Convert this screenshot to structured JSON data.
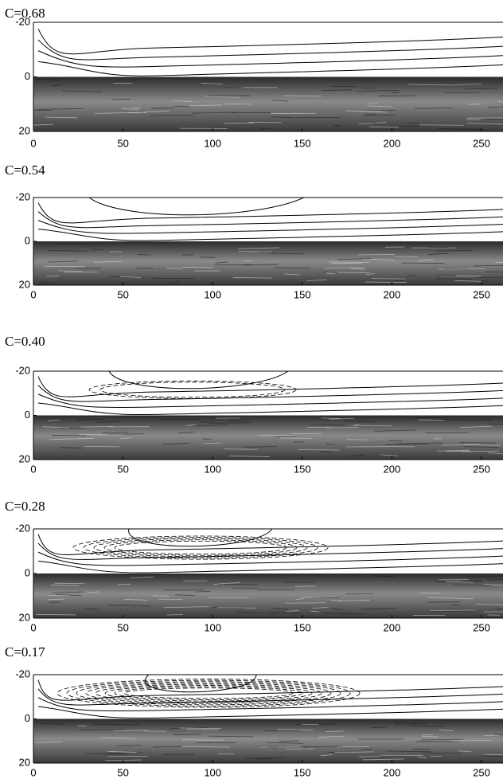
{
  "chart_data": [
    {
      "type": "flow",
      "title": "C=0.68",
      "xlim": [
        0,
        262
      ],
      "xticks": [
        0,
        50,
        100,
        150,
        200,
        250
      ],
      "ylim": [
        -20,
        20
      ],
      "yticks": [
        -20,
        0,
        20
      ]
    },
    {
      "type": "flow",
      "title": "C=0.54",
      "xlim": [
        0,
        262
      ],
      "xticks": [
        0,
        50,
        100,
        150,
        200,
        250
      ],
      "ylim": [
        -20,
        20
      ],
      "yticks": [
        -20,
        0,
        20
      ]
    },
    {
      "type": "flow",
      "title": "C=0.40",
      "xlim": [
        0,
        262
      ],
      "xticks": [
        0,
        50,
        100,
        150,
        200,
        250
      ],
      "ylim": [
        -20,
        20
      ],
      "yticks": [
        -20,
        0,
        20
      ]
    },
    {
      "type": "flow",
      "title": "C=0.28",
      "xlim": [
        0,
        262
      ],
      "xticks": [
        0,
        50,
        100,
        150,
        200,
        250
      ],
      "ylim": [
        -20,
        20
      ],
      "yticks": [
        -20,
        0,
        20
      ]
    },
    {
      "type": "flow",
      "title": "C=0.17",
      "xlim": [
        0,
        262
      ],
      "xticks": [
        0,
        50,
        100,
        150,
        200,
        250
      ],
      "ylim": [
        -20,
        20
      ],
      "yticks": [
        -20,
        0,
        20
      ]
    }
  ]
}
